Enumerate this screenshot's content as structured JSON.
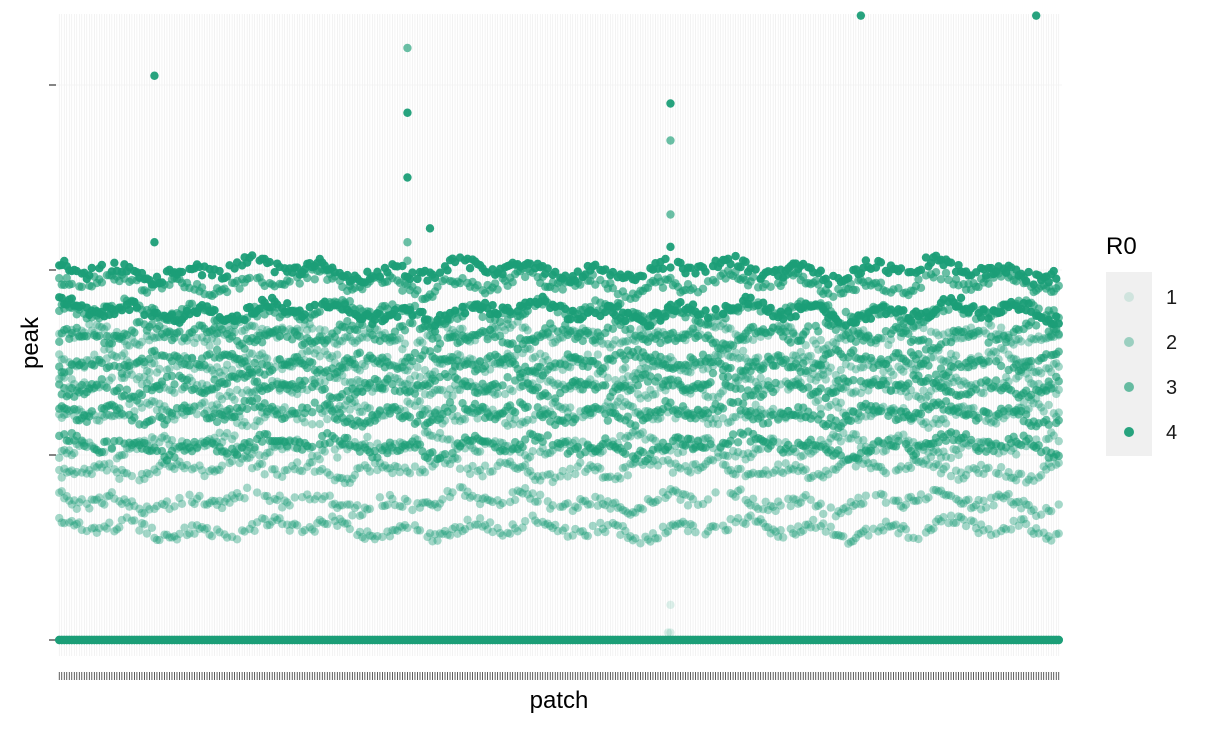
{
  "chart_data": {
    "type": "scatter",
    "title": "",
    "xlabel": "patch",
    "ylabel": "peak",
    "x_tick_labels_shown": false,
    "y_tick_labels_shown": false,
    "n_patches": 400,
    "ylim": [
      0,
      10
    ],
    "y_ticks": [
      0,
      2,
      4,
      6,
      8
    ],
    "grid": "vertical minor lines per patch",
    "legend": {
      "title": "R0",
      "placement": "right",
      "entries": [
        "1",
        "2",
        "3",
        "4"
      ]
    },
    "series": [
      {
        "name": "1",
        "color": "#1b9e77",
        "opacity": 0.15,
        "bands": [
          0
        ],
        "outliers": [
          {
            "x": 243,
            "y": 0.08
          },
          {
            "x": 244,
            "y": 0.08
          },
          {
            "x": 244,
            "y": 0.38
          }
        ]
      },
      {
        "name": "2",
        "color": "#1b9e77",
        "opacity": 0.4,
        "bands": [
          0,
          1.2,
          1.5,
          1.85,
          2.1,
          2.45,
          2.75,
          3.0,
          3.3
        ]
      },
      {
        "name": "3",
        "color": "#1b9e77",
        "opacity": 0.65,
        "bands": [
          0,
          2.1,
          2.45,
          2.75,
          3.0,
          3.3,
          3.55,
          3.85
        ],
        "outliers": [
          {
            "x": 139,
            "y": 4.3
          },
          {
            "x": 139,
            "y": 4.1
          },
          {
            "x": 139,
            "y": 6.4
          },
          {
            "x": 244,
            "y": 5.4
          },
          {
            "x": 244,
            "y": 4.6
          }
        ]
      },
      {
        "name": "4",
        "color": "#1b9e77",
        "opacity": 0.95,
        "bands": [
          0,
          3.55,
          4.0
        ],
        "outliers": [
          {
            "x": 38,
            "y": 6.1
          },
          {
            "x": 38,
            "y": 4.3
          },
          {
            "x": 139,
            "y": 5.7
          },
          {
            "x": 139,
            "y": 5.0
          },
          {
            "x": 148,
            "y": 4.45
          },
          {
            "x": 244,
            "y": 5.8
          },
          {
            "x": 244,
            "y": 4.25
          },
          {
            "x": 320,
            "y": 6.75
          },
          {
            "x": 390,
            "y": 6.75
          }
        ]
      }
    ]
  }
}
